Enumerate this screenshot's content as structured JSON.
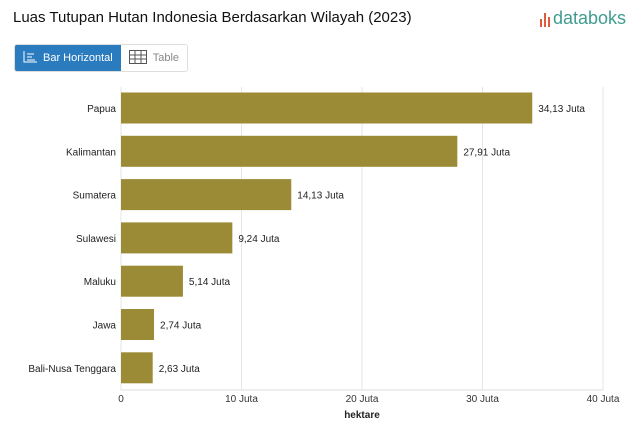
{
  "header": {
    "title": "Luas Tutupan Hutan Indonesia Berdasarkan Wilayah (2023)",
    "logo": "databoks"
  },
  "toggle": {
    "bar_label": "Bar Horizontal",
    "table_label": "Table"
  },
  "colors": {
    "bar": "#9b8a36",
    "accent": "#2b7bbf",
    "logo": "#3f9c8f"
  },
  "chart_data": {
    "type": "bar",
    "orientation": "horizontal",
    "categories": [
      "Papua",
      "Kalimantan",
      "Sumatera",
      "Sulawesi",
      "Maluku",
      "Jawa",
      "Bali-Nusa Tenggara"
    ],
    "values": [
      34.13,
      27.91,
      14.13,
      9.24,
      5.14,
      2.74,
      2.63
    ],
    "data_labels": [
      "34,13 Juta",
      "27,91 Juta",
      "14,13 Juta",
      "9,24 Juta",
      "5,14 Juta",
      "2,74 Juta",
      "2,63 Juta"
    ],
    "xlim": [
      0,
      40
    ],
    "xticks": [
      0,
      10,
      20,
      30,
      40
    ],
    "xtick_labels": [
      "0",
      "10 Juta",
      "20 Juta",
      "30 Juta",
      "40 Juta"
    ],
    "xlabel": "hektare",
    "grid": true,
    "unit": "Juta hektare"
  }
}
